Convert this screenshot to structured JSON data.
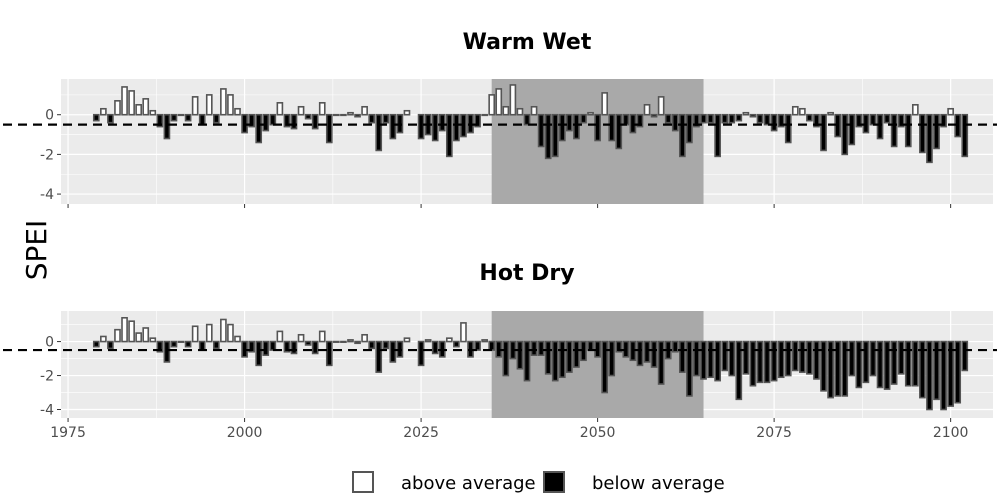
{
  "chart_data": {
    "type": "bar",
    "ylabel": "SPEI",
    "x_ticks": [
      1975,
      2000,
      2025,
      2050,
      2075,
      2100
    ],
    "y_ticks": [
      0,
      -2,
      -4
    ],
    "xlim": [
      1974,
      2106
    ],
    "ylim": [
      -4.5,
      1.8
    ],
    "threshold": -0.5,
    "shaded_period": [
      2035,
      2065
    ],
    "legend": {
      "items": [
        "above average",
        "below average"
      ],
      "position": "bottom"
    },
    "colors": {
      "panel_bg": "#ebebeb",
      "grid": "#ffffff",
      "shade": "#a9a9a9",
      "above_fill": "#ffffff",
      "below_fill": "#000000",
      "bar_edge": "#555555"
    },
    "panels": [
      {
        "title": "Warm Wet",
        "segments": [
          {
            "start_year": 1979,
            "values": [
              -0.3,
              0.3,
              -0.4,
              0.7,
              1.4,
              1.2,
              0.5,
              0.8,
              0.2,
              -0.6,
              -1.2,
              -0.3,
              0.0,
              -0.3,
              0.9,
              -0.5,
              1.0,
              -0.4,
              1.3,
              1.0,
              0.3,
              -0.9,
              -0.6,
              -1.4,
              -0.8,
              -0.5,
              0.6,
              -0.6,
              -0.7,
              0.4,
              -0.2,
              -0.7,
              0.6,
              -1.4,
              0.0,
              0.0,
              0.1,
              -0.1,
              0.4,
              -0.4,
              -1.8,
              -0.4,
              -1.2,
              -0.9,
              0.2
            ]
          },
          {
            "start_year": 2025,
            "values": [
              -1.2,
              -1.0,
              -1.3,
              -0.8,
              -2.1,
              -1.3,
              -1.1,
              -0.9,
              -0.6,
              0.0,
              1.0,
              1.3,
              0.4,
              1.5,
              0.3,
              -0.5,
              0.4,
              -1.6,
              -2.2,
              -2.1,
              -1.3,
              -0.8,
              -1.2,
              -0.4,
              0.1,
              -1.3,
              1.1,
              -1.3,
              -1.7,
              -0.5,
              -0.9,
              -0.6,
              0.5,
              -0.1,
              0.9,
              -0.4,
              -0.8,
              -2.1,
              -1.4
            ]
          },
          {
            "start_year": 2064,
            "values": [
              -0.6,
              -0.4,
              -0.4,
              -2.1,
              -0.4,
              -0.4,
              -0.3,
              0.1,
              -0.1,
              -0.4,
              -0.5,
              -0.8,
              -0.6,
              -1.4,
              0.4,
              0.3,
              -0.3,
              -0.6,
              -1.8,
              0.1,
              -1.1,
              -2.0,
              -1.5,
              -0.6,
              -0.9,
              -0.5,
              -1.2,
              -0.4,
              -1.6,
              -0.6,
              -1.6,
              0.5,
              -1.9,
              -2.4,
              -1.7,
              -0.6,
              0.3,
              -1.1,
              -2.1
            ]
          }
        ]
      },
      {
        "title": "Hot Dry",
        "segments": [
          {
            "start_year": 1979,
            "values": [
              -0.3,
              0.3,
              -0.4,
              0.7,
              1.4,
              1.2,
              0.5,
              0.8,
              0.2,
              -0.6,
              -1.2,
              -0.3,
              0.0,
              -0.3,
              0.9,
              -0.5,
              1.0,
              -0.4,
              1.3,
              1.0,
              0.3,
              -0.9,
              -0.6,
              -1.4,
              -0.8,
              -0.5,
              0.6,
              -0.6,
              -0.7,
              0.4,
              -0.2,
              -0.7,
              0.6,
              -1.4,
              0.0,
              0.0,
              0.1,
              -0.1,
              0.4,
              -0.4,
              -1.8,
              -0.4,
              -1.2,
              -0.9,
              0.2
            ]
          },
          {
            "start_year": 2025,
            "values": [
              -1.4,
              0.1,
              -0.7,
              -0.9,
              0.2,
              -0.3,
              1.1,
              -0.9,
              -0.5,
              0.1,
              -0.5,
              -0.9,
              -2.0,
              -1.0,
              -1.6,
              -2.3,
              -0.8,
              -0.8,
              -1.9,
              -2.3,
              -2.1,
              -1.8,
              -1.5,
              -1.1,
              -0.5,
              -0.9,
              -3.0,
              -2.0,
              -0.6,
              -0.9,
              -1.1,
              -1.4,
              -1.2,
              -1.5,
              -2.5,
              -1.0,
              -0.6,
              -1.8,
              -3.2
            ]
          },
          {
            "start_year": 2064,
            "values": [
              -2.0,
              -2.2,
              -2.1,
              -2.3,
              -1.7,
              -2.0,
              -3.4,
              -1.9,
              -2.6,
              -2.4,
              -2.4,
              -2.3,
              -2.1,
              -2.0,
              -1.7,
              -1.8,
              -1.9,
              -2.2,
              -2.9,
              -3.3,
              -3.2,
              -3.2,
              -2.0,
              -2.7,
              -2.4,
              -2.0,
              -2.7,
              -2.8,
              -2.5,
              -1.9,
              -2.6,
              -2.6,
              -3.3,
              -4.0,
              -3.4,
              -4.0,
              -3.8,
              -3.6,
              -1.7
            ]
          }
        ]
      }
    ]
  }
}
